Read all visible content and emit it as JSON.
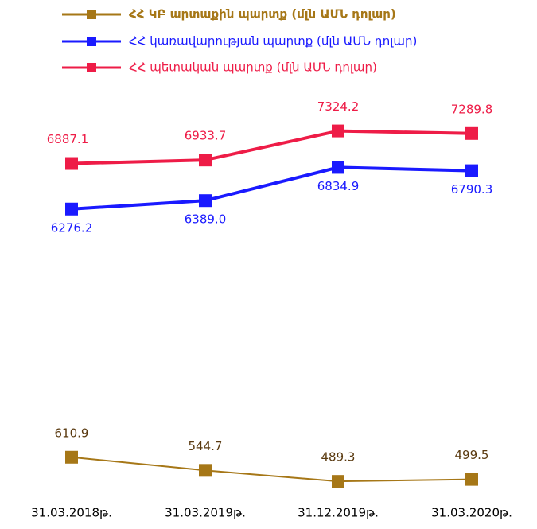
{
  "chart_data": {
    "type": "line",
    "categories": [
      "31.03.2018թ.",
      "31.03.2019թ.",
      "31.12.2019թ.",
      "31.03.2020թ."
    ],
    "ylim": [
      2250,
      7800
    ],
    "y2lim": [
      350,
      2430
    ],
    "series": [
      {
        "name": "ՀՀ ԿԲ արտաքին պարտք (մլն ԱՄՆ դոլար)",
        "color": "#a67717",
        "axis": "y2",
        "values": [
          610.9,
          544.7,
          489.3,
          499.5
        ],
        "value_labels": [
          "610.9",
          "544.7",
          "489.3",
          "499.5"
        ]
      },
      {
        "name": "ՀՀ կառավարության պարտք (մլն ԱՄՆ դոլար)",
        "color": "#1a1aff",
        "values": [
          6276.2,
          6389.0,
          6834.9,
          6790.3
        ],
        "value_labels": [
          "6276.2",
          "6389.0",
          "6834.9",
          "6790.3"
        ]
      },
      {
        "name": "ՀՀ պետական պարտք (մլն ԱՄՆ դոլար)",
        "color": "#ee1c47",
        "values": [
          6887.1,
          6933.7,
          7324.2,
          7289.8
        ],
        "value_labels": [
          "6887.1",
          "6933.7",
          "7324.2",
          "7289.8"
        ]
      }
    ]
  }
}
